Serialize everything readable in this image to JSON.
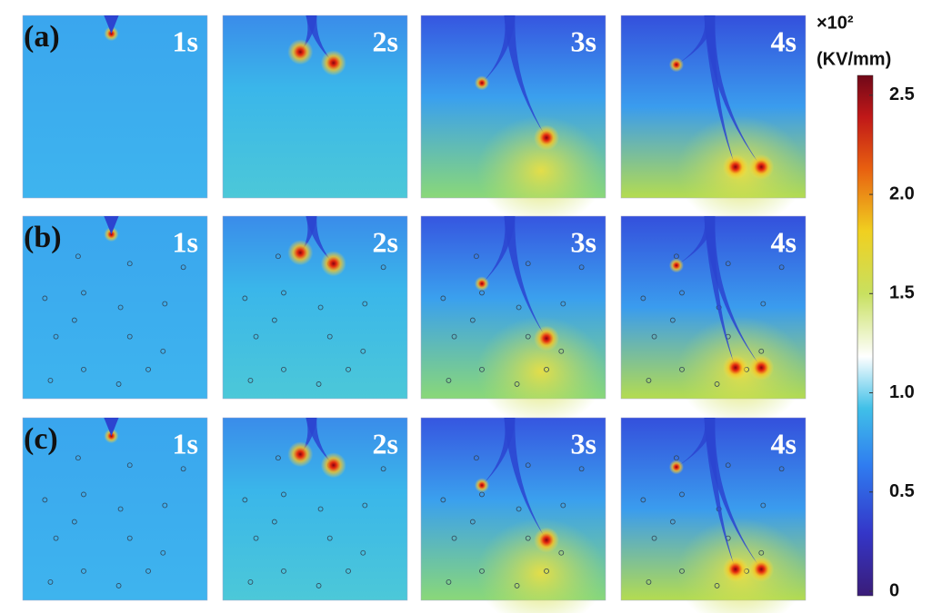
{
  "figure": {
    "rows": [
      {
        "label": "(a)",
        "panels": [
          "1s",
          "2s",
          "3s",
          "4s"
        ]
      },
      {
        "label": "(b)",
        "panels": [
          "1s",
          "2s",
          "3s",
          "4s"
        ]
      },
      {
        "label": "(c)",
        "panels": [
          "1s",
          "2s",
          "3s",
          "4s"
        ]
      }
    ],
    "colorbar": {
      "multiplier": "×10²",
      "unit": "(KV/mm)",
      "clim": [
        0,
        2.6
      ],
      "ticks": [
        0,
        0.5,
        {
          "value": 1,
          "label": "1.0"
        },
        1.5,
        {
          "value": 2,
          "label": "2.0"
        },
        2.5
      ]
    }
  }
}
